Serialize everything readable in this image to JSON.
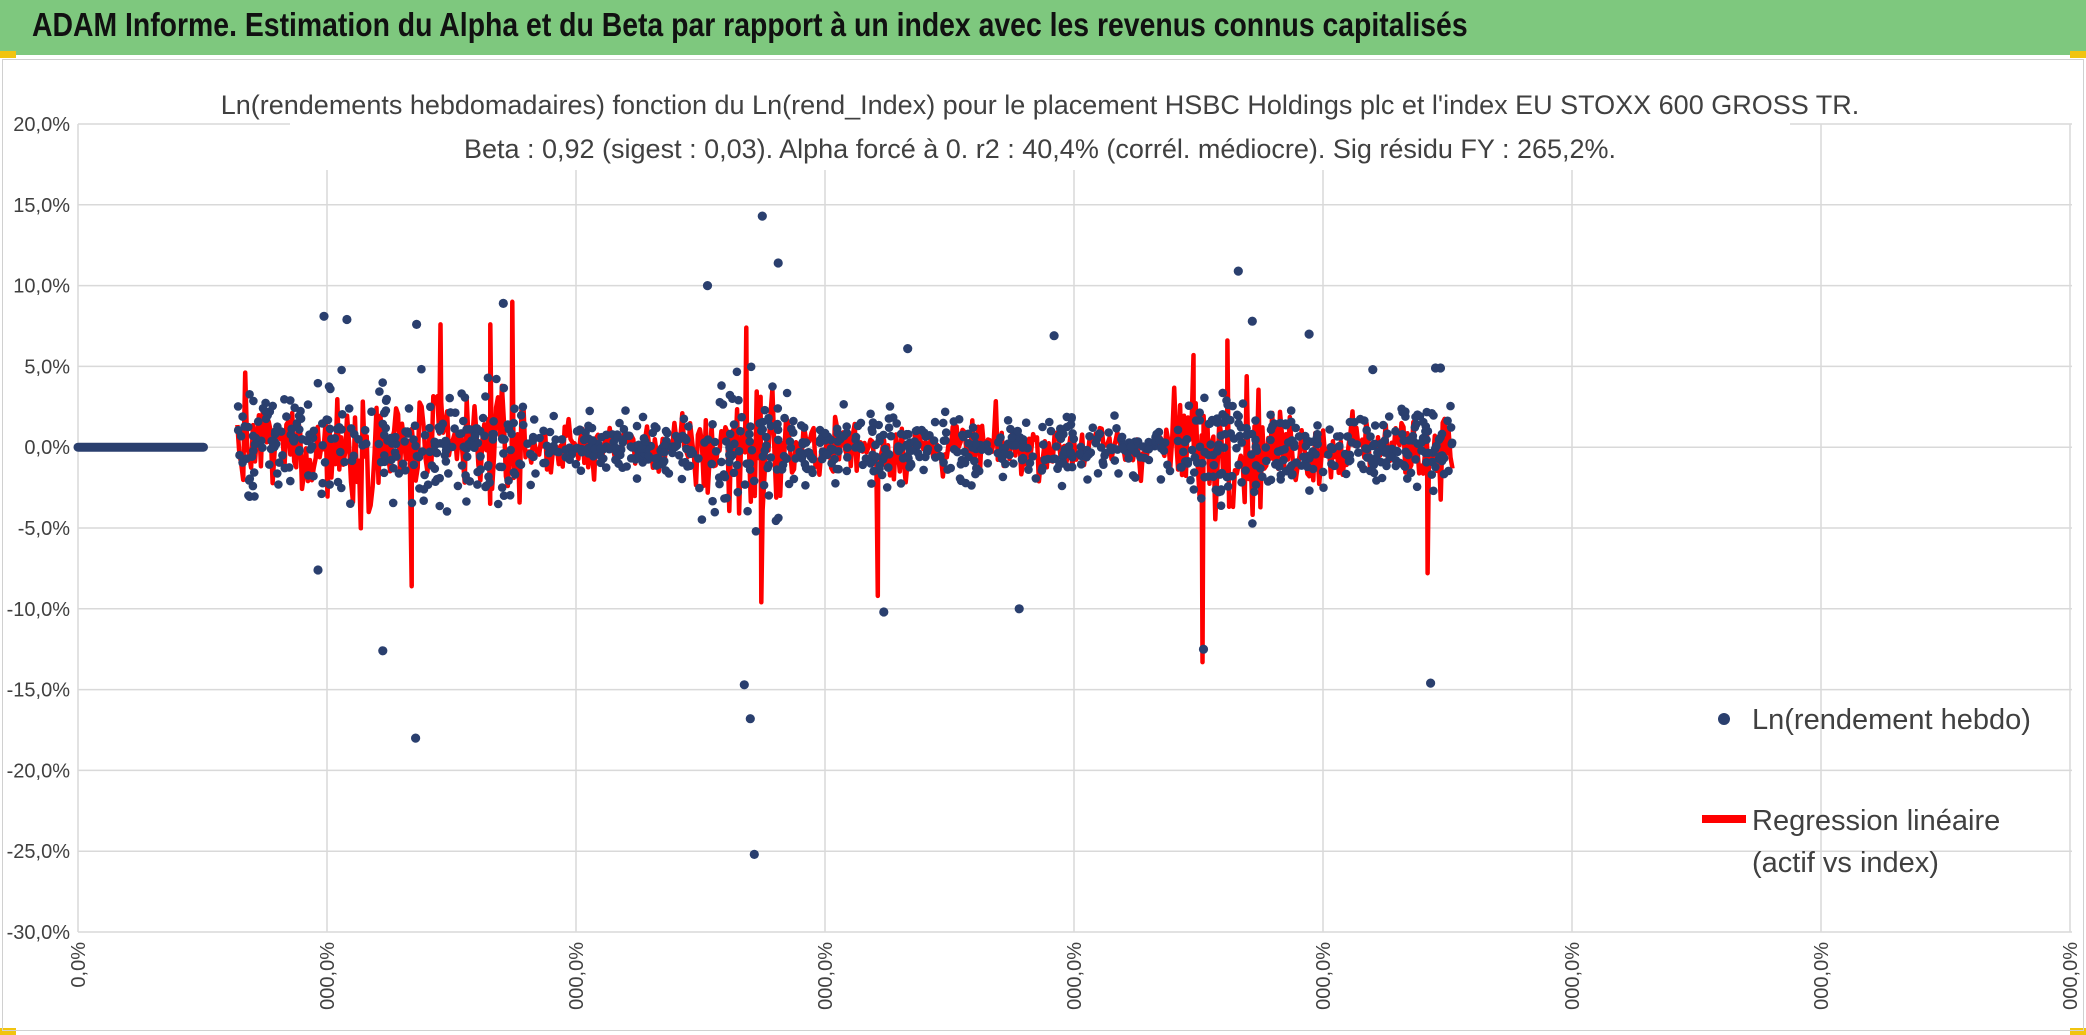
{
  "banner": {
    "title": "ADAM Informe. Estimation du Alpha et du Beta par rapport à un index avec les revenus connus capitalisés"
  },
  "colors": {
    "banner_bg": "#7ec87e",
    "corner_marker": "#f1c40f",
    "series_points": "#2a3f6e",
    "series_regression": "#ff0000",
    "grid": "#d9d9d9"
  },
  "chart_data": {
    "type": "scatter",
    "title_line1": "Ln(rendements hebdomadaires) fonction du Ln(rend_Index) pour le placement HSBC Holdings plc et l'index EU STOXX 600 GROSS TR.",
    "title_line2": "Beta : 0,92 (sigest : 0,03). Alpha forcé à 0. r2 : 40,4% (corrél. médiocre). Sig résidu FY : 265,2%.",
    "y_ticks": [
      "20,0%",
      "15,0%",
      "10,0%",
      "5,0%",
      "0,0%",
      "-5,0%",
      "-10,0%",
      "-15,0%",
      "-20,0%",
      "-25,0%",
      "-30,0%"
    ],
    "ylim": [
      -30,
      20
    ],
    "x_ticks": [
      "0,0%",
      "000,0%",
      "000,0%",
      "000,0%",
      "000,0%",
      "000,0%",
      "000,0%",
      "000,0%",
      "000,0%"
    ],
    "grid": true,
    "legend_position": "right",
    "series": [
      {
        "name": "Ln(rendement hebdo)",
        "kind": "points",
        "color": "#2a3f6e"
      },
      {
        "name": "Regression linéaire",
        "name_line2": "(actif vs index)",
        "kind": "line",
        "color": "#ff0000"
      }
    ],
    "notable_points": [
      [
        0.23,
        0.4
      ],
      [
        0.241,
        -7.6
      ],
      [
        0.247,
        8.1
      ],
      [
        0.27,
        7.9
      ],
      [
        0.306,
        -12.6
      ],
      [
        0.339,
        -18.0
      ],
      [
        0.34,
        7.6
      ],
      [
        0.427,
        8.9
      ],
      [
        0.632,
        10.0
      ],
      [
        0.669,
        -14.7
      ],
      [
        0.675,
        -16.8
      ],
      [
        0.679,
        -25.2
      ],
      [
        0.687,
        14.3
      ],
      [
        0.703,
        11.4
      ],
      [
        0.809,
        -10.2
      ],
      [
        0.833,
        6.1
      ],
      [
        0.945,
        -10.0
      ],
      [
        0.98,
        6.9
      ],
      [
        1.13,
        -12.5
      ],
      [
        1.165,
        10.9
      ],
      [
        1.179,
        7.8
      ],
      [
        1.236,
        7.0
      ],
      [
        1.3,
        4.8
      ],
      [
        1.358,
        -14.6
      ],
      [
        1.363,
        4.9
      ],
      [
        1.368,
        4.9
      ]
    ],
    "notable_regression": [
      [
        0.335,
        -8.6
      ],
      [
        0.364,
        7.6
      ],
      [
        0.414,
        7.6
      ],
      [
        0.436,
        9.0
      ],
      [
        0.671,
        7.4
      ],
      [
        0.686,
        -9.6
      ],
      [
        0.803,
        -9.2
      ],
      [
        1.12,
        5.7
      ],
      [
        1.129,
        -13.3
      ],
      [
        1.154,
        6.6
      ],
      [
        1.355,
        -7.8
      ]
    ]
  }
}
